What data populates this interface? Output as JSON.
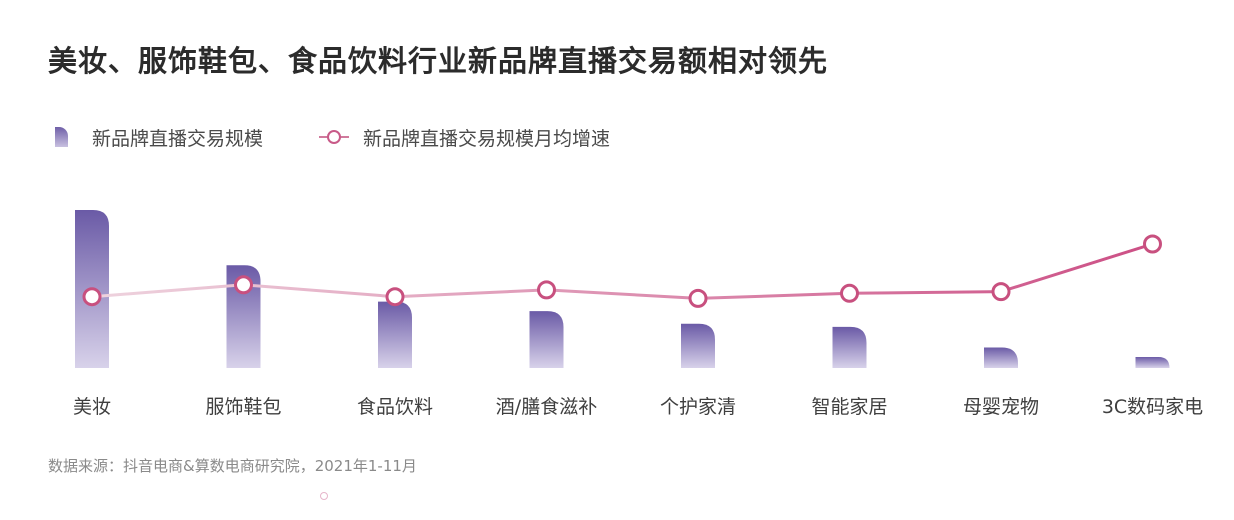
{
  "title": "美妆、服饰鞋包、食品饮料行业新品牌直播交易额相对领先",
  "legend": {
    "bar_label": "新品牌直播交易规模",
    "line_label": "新品牌直播交易规模月均增速"
  },
  "source": "数据来源：抖音电商&算数电商研究院，2021年1-11月",
  "colors": {
    "bar_top": "#6a5aa6",
    "bar_bottom": "#d8d2ea",
    "line_start": "#eed3de",
    "line_end": "#cc4f85",
    "marker_stroke": "#c8507f"
  },
  "chart_data": {
    "type": "bar+line",
    "categories": [
      "美妆",
      "服饰鞋包",
      "食品饮料",
      "酒/膳食滋补",
      "个护家清",
      "智能家居",
      "母婴宠物",
      "3C数码家电"
    ],
    "series": [
      {
        "name": "新品牌直播交易规模",
        "type": "bar",
        "values": [
          100,
          65,
          42,
          36,
          28,
          26,
          13,
          7
        ]
      },
      {
        "name": "新品牌直播交易规模月均增速",
        "type": "line",
        "values": [
          49,
          56,
          49,
          53,
          48,
          51,
          52,
          80
        ]
      }
    ],
    "axes_shown": false,
    "grid": false,
    "legend_position": "top-left"
  }
}
